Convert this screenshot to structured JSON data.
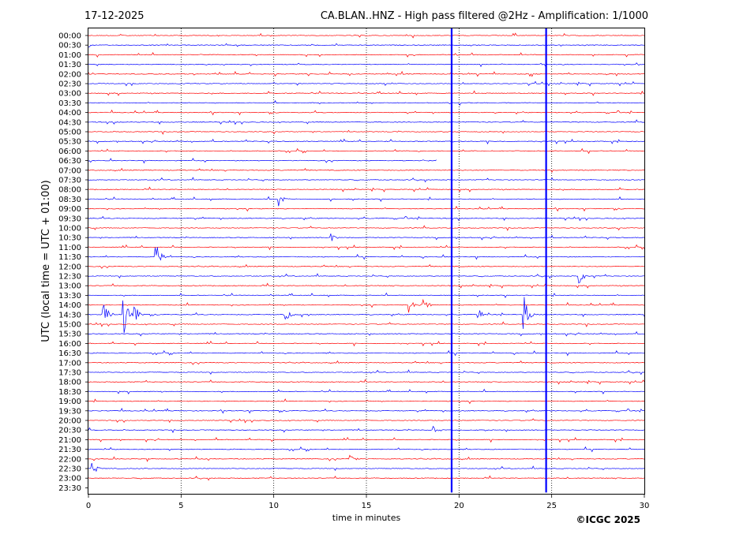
{
  "header": {
    "date": "17-12-2025",
    "title": "CA.BLAN..HNZ - High pass filtered @2Hz - Amplification: 1/1000"
  },
  "copyright": "©ICGC 2025",
  "chart_data": {
    "type": "line",
    "xlabel": "time in minutes",
    "ylabel": "UTC (local time = UTC + 01:00)",
    "xlim": [
      0,
      30
    ],
    "x_ticks": [
      0,
      5,
      10,
      15,
      20,
      25,
      30
    ],
    "x_tick_labels": [
      "0",
      "5",
      "10",
      "15",
      "20",
      "25",
      "30"
    ],
    "grid": "vertical dotted lines at each x tick",
    "row_labels": [
      "00:00",
      "00:30",
      "01:00",
      "01:30",
      "02:00",
      "02:30",
      "03:00",
      "03:30",
      "04:00",
      "04:30",
      "05:00",
      "05:30",
      "06:00",
      "06:30",
      "07:00",
      "07:30",
      "08:00",
      "08:30",
      "09:00",
      "09:30",
      "10:00",
      "10:30",
      "11:00",
      "11:30",
      "12:00",
      "12:30",
      "13:00",
      "13:30",
      "14:00",
      "14:30",
      "15:00",
      "15:30",
      "16:00",
      "16:30",
      "17:00",
      "17:30",
      "18:00",
      "18:30",
      "19:00",
      "19:30",
      "20:00",
      "20:30",
      "21:00",
      "21:30",
      "22:00",
      "22:30",
      "23:00",
      "23:30"
    ],
    "series_colors": [
      "#ff0000",
      "#0000ff"
    ],
    "last_row_end_minute": 0,
    "row_0630_end_minute": 18.8,
    "large_spikes": [
      {
        "minute": 19.6,
        "rows_from": "00:00",
        "rows_to": "23:30",
        "color": "#0000ff"
      },
      {
        "minute": 24.7,
        "rows_from": "00:00",
        "rows_to": "23:30",
        "color": "#0000ff"
      }
    ],
    "events": [
      {
        "row": "11:30",
        "minute": 3.6,
        "amplitude": 2.0
      },
      {
        "row": "14:30",
        "minute": 0.8,
        "amplitude": 1.5
      },
      {
        "row": "14:30",
        "minute": 1.9,
        "amplitude": 2.2
      },
      {
        "row": "14:30",
        "minute": 2.5,
        "amplitude": 1.4
      },
      {
        "row": "14:30",
        "minute": 10.6,
        "amplitude": 0.9
      },
      {
        "row": "14:30",
        "minute": 21.0,
        "amplitude": 0.8
      },
      {
        "row": "14:30",
        "minute": 23.5,
        "amplitude": 2.0
      },
      {
        "row": "14:00",
        "minute": 17.3,
        "amplitude": 0.8
      },
      {
        "row": "14:00",
        "minute": 18.0,
        "amplitude": 1.2
      },
      {
        "row": "08:30",
        "minute": 10.3,
        "amplitude": 0.8
      },
      {
        "row": "12:30",
        "minute": 26.5,
        "amplitude": 0.9
      },
      {
        "row": "22:30",
        "minute": 0.2,
        "amplitude": 0.9
      },
      {
        "row": "20:30",
        "minute": 18.6,
        "amplitude": 0.5
      },
      {
        "row": "10:30",
        "minute": 13.1,
        "amplitude": 0.5
      },
      {
        "row": "22:00",
        "minute": 14.1,
        "amplitude": 0.5
      }
    ]
  }
}
